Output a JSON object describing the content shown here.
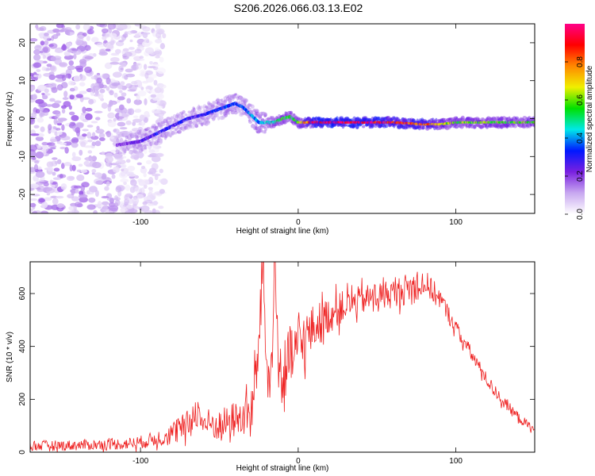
{
  "title": "S206.2026.066.03.13.E02",
  "chart_data": [
    {
      "type": "heatmap",
      "xlabel": "Height of straight line (km)",
      "ylabel": "Frequency (Hz)",
      "xlim": [
        -170,
        150
      ],
      "ylim": [
        -25,
        25
      ],
      "xticks": [
        -100,
        0,
        100
      ],
      "yticks": [
        -20,
        -10,
        0,
        10,
        20
      ],
      "colorbar": {
        "label": "Normalized spectral amplitude",
        "range": [
          0,
          1
        ],
        "ticks": [
          "0.0",
          "0.2",
          "0.4",
          "0.6",
          "0.8"
        ],
        "colors": [
          "#ffffff",
          "#c8a8f0",
          "#7a20e0",
          "#0018ff",
          "#00e8e8",
          "#00e000",
          "#f0f000",
          "#ff8800",
          "#ff0000",
          "#ff0088"
        ]
      },
      "ridge": {
        "x": [
          -115,
          -100,
          -90,
          -80,
          -70,
          -60,
          -50,
          -40,
          -35,
          -30,
          -25,
          -20,
          -15,
          -10,
          -5,
          0,
          10,
          20,
          40,
          60,
          80,
          90,
          100,
          120,
          150
        ],
        "frequency_hz": [
          -7,
          -6,
          -4,
          -2,
          0,
          1,
          2.5,
          4,
          3,
          1,
          -1,
          -1,
          -1,
          0,
          0.5,
          -1,
          -1,
          -1,
          -1,
          -1,
          -1.5,
          -1.5,
          -1,
          -1,
          -1
        ],
        "peak_amplitude": [
          0.2,
          0.25,
          0.3,
          0.3,
          0.3,
          0.3,
          0.35,
          0.35,
          0.35,
          0.4,
          0.4,
          0.45,
          0.5,
          0.55,
          0.55,
          0.6,
          0.95,
          1.0,
          1.0,
          0.9,
          0.85,
          0.7,
          0.6,
          0.6,
          0.6
        ]
      },
      "noise_region_x": [
        -170,
        -95
      ]
    },
    {
      "type": "line",
      "xlabel": "Height of straight line (km)",
      "ylabel": "SNR (10 * v/v)",
      "xlim": [
        -170,
        150
      ],
      "ylim": [
        0,
        720
      ],
      "xticks": [
        -100,
        0,
        100
      ],
      "yticks": [
        0,
        200,
        400,
        600
      ],
      "series": [
        {
          "name": "SNR",
          "color": "#ee2020",
          "x": [
            -170,
            -150,
            -130,
            -110,
            -100,
            -90,
            -80,
            -70,
            -65,
            -60,
            -50,
            -40,
            -35,
            -30,
            -26,
            -24,
            -22,
            -20,
            -18,
            -15,
            -12,
            -10,
            -5,
            0,
            10,
            20,
            30,
            40,
            50,
            60,
            70,
            80,
            90,
            100,
            110,
            120,
            130,
            140,
            150
          ],
          "y": [
            25,
            25,
            28,
            32,
            38,
            50,
            70,
            100,
            160,
            110,
            100,
            125,
            130,
            150,
            300,
            560,
            720,
            300,
            220,
            700,
            300,
            280,
            350,
            400,
            470,
            520,
            555,
            575,
            590,
            600,
            620,
            640,
            580,
            470,
            370,
            270,
            190,
            130,
            80
          ],
          "noise_amplitude": [
            20,
            20,
            20,
            22,
            25,
            30,
            45,
            60,
            60,
            60,
            60,
            70,
            70,
            90,
            120,
            100,
            100,
            150,
            120,
            100,
            120,
            140,
            130,
            120,
            90,
            70,
            60,
            55,
            55,
            55,
            60,
            55,
            40,
            30,
            28,
            25,
            22,
            20,
            18
          ]
        }
      ]
    }
  ]
}
